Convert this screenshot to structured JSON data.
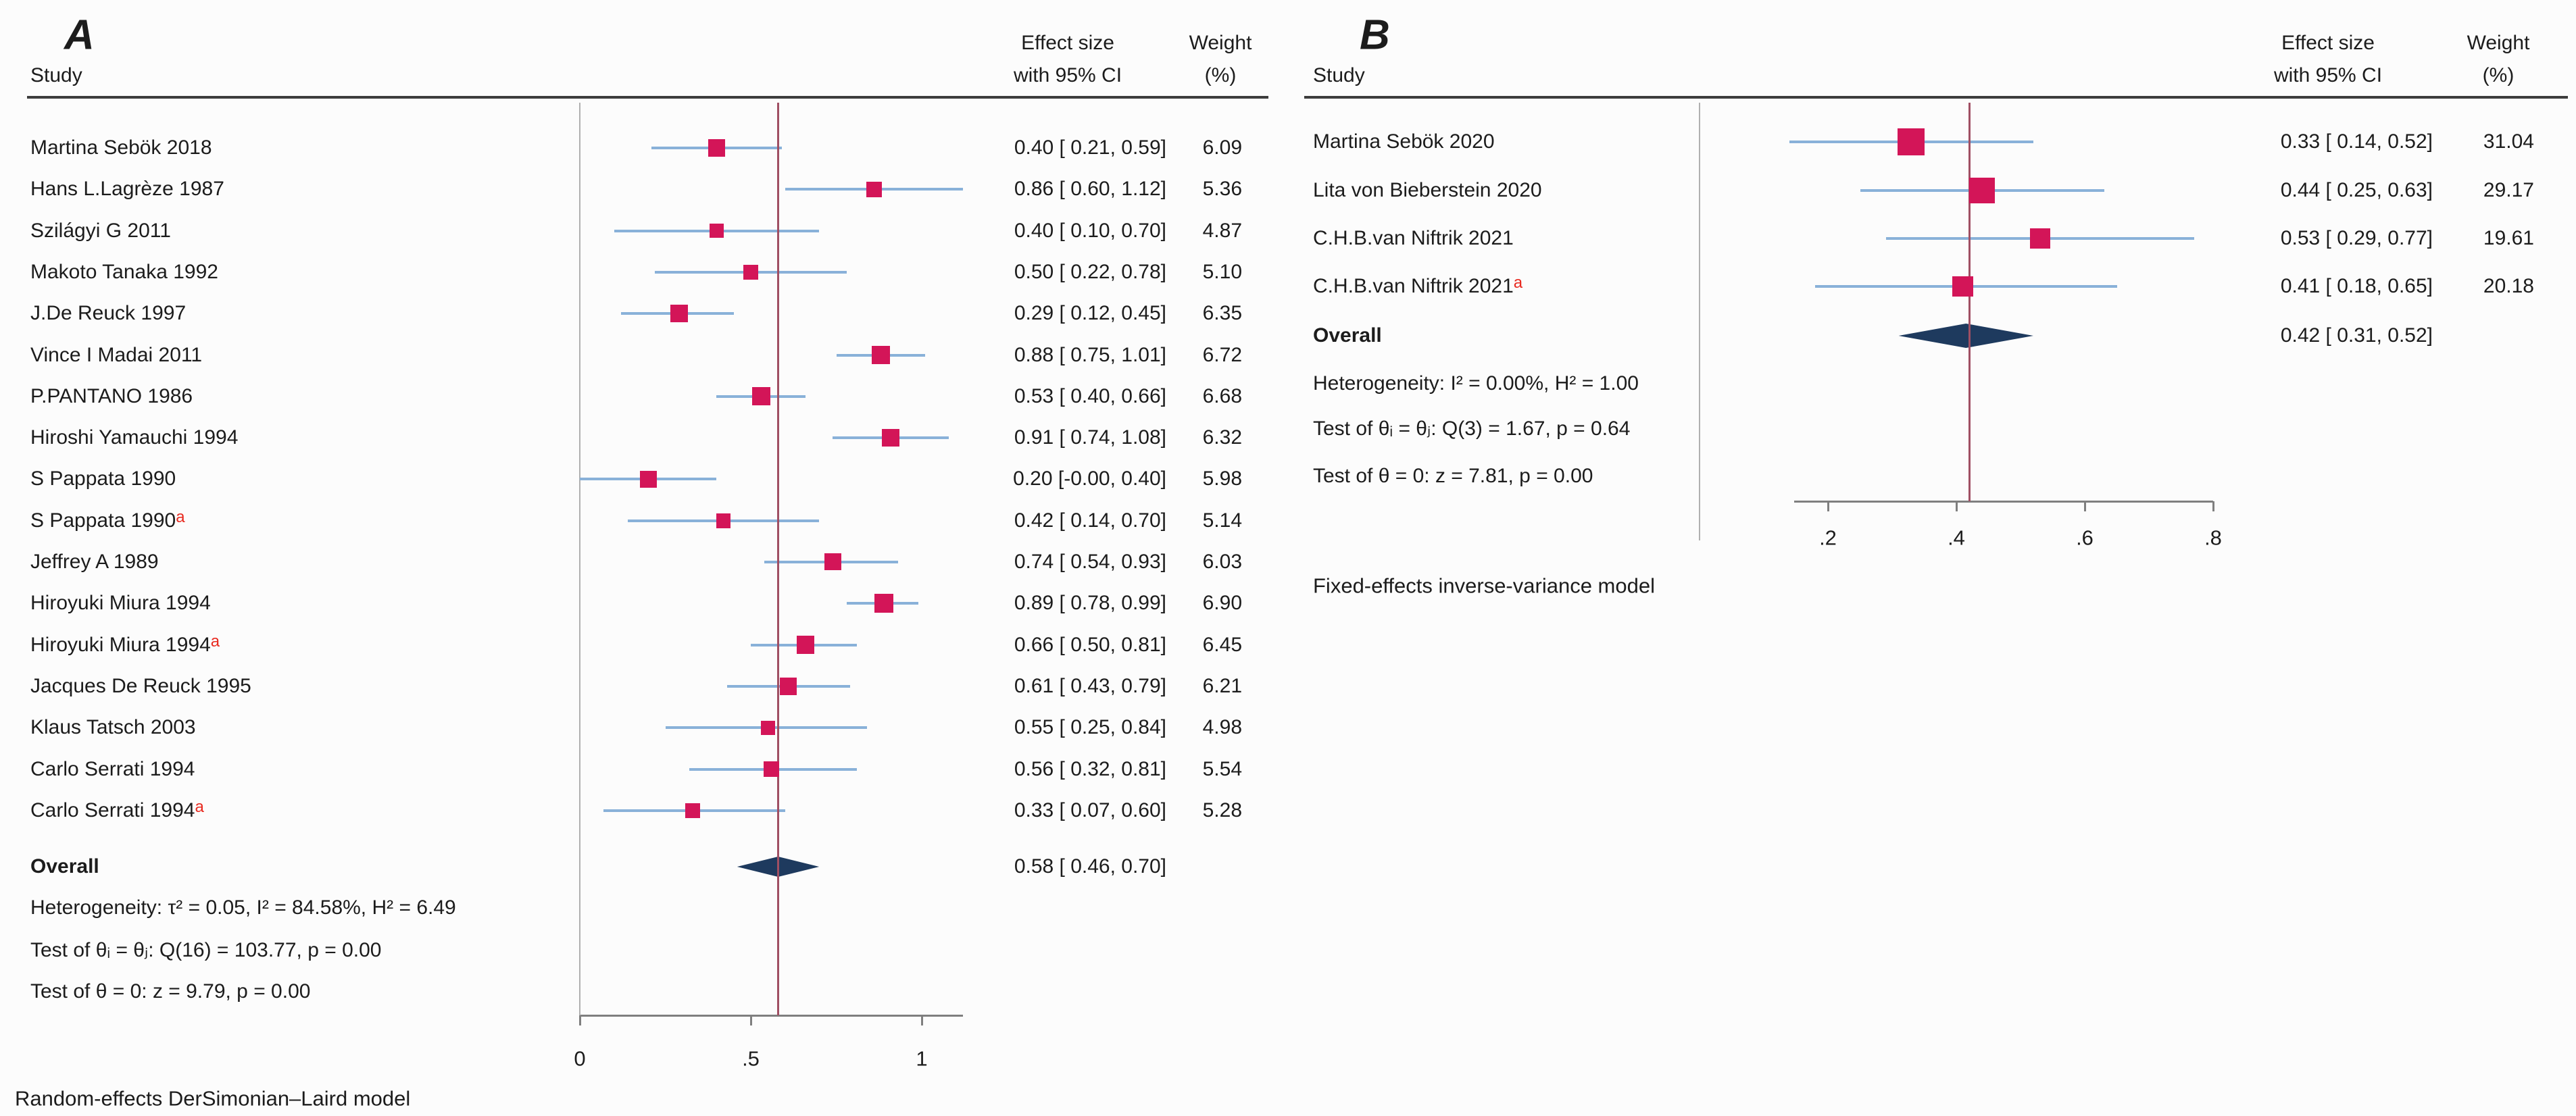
{
  "figure_type": "forest-plot-meta-analysis",
  "chart_data": [
    {
      "type": "forest",
      "panel_label": "A",
      "columns": {
        "study": "Study",
        "effect_line1": "Effect size",
        "effect_line2": "with 95% CI",
        "weight_line1": "Weight",
        "weight_line2": "(%)"
      },
      "studies": [
        {
          "name": "Martina Sebök 2018",
          "flag": "",
          "effect": 0.4,
          "ci": [
            0.21,
            0.59
          ],
          "effect_label": "0.40 [ 0.21, 0.59]",
          "weight": 6.09,
          "weight_label": "6.09"
        },
        {
          "name": "Hans L.Lagrèze 1987",
          "flag": "",
          "effect": 0.86,
          "ci": [
            0.6,
            1.12
          ],
          "effect_label": "0.86 [ 0.60, 1.12]",
          "weight": 5.36,
          "weight_label": "5.36"
        },
        {
          "name": "Szilágyi G 2011",
          "flag": "",
          "effect": 0.4,
          "ci": [
            0.1,
            0.7
          ],
          "effect_label": "0.40 [ 0.10, 0.70]",
          "weight": 4.87,
          "weight_label": "4.87"
        },
        {
          "name": "Makoto Tanaka 1992",
          "flag": "",
          "effect": 0.5,
          "ci": [
            0.22,
            0.78
          ],
          "effect_label": "0.50 [ 0.22, 0.78]",
          "weight": 5.1,
          "weight_label": "5.10"
        },
        {
          "name": "J.De Reuck 1997",
          "flag": "",
          "effect": 0.29,
          "ci": [
            0.12,
            0.45
          ],
          "effect_label": "0.29 [ 0.12, 0.45]",
          "weight": 6.35,
          "weight_label": "6.35"
        },
        {
          "name": "Vince I Madai 2011",
          "flag": "",
          "effect": 0.88,
          "ci": [
            0.75,
            1.01
          ],
          "effect_label": "0.88 [ 0.75, 1.01]",
          "weight": 6.72,
          "weight_label": "6.72"
        },
        {
          "name": "P.PANTANO 1986",
          "flag": "",
          "effect": 0.53,
          "ci": [
            0.4,
            0.66
          ],
          "effect_label": "0.53 [ 0.40, 0.66]",
          "weight": 6.68,
          "weight_label": "6.68"
        },
        {
          "name": "Hiroshi Yamauchi 1994",
          "flag": "",
          "effect": 0.91,
          "ci": [
            0.74,
            1.08
          ],
          "effect_label": "0.91 [ 0.74, 1.08]",
          "weight": 6.32,
          "weight_label": "6.32"
        },
        {
          "name": "S Pappata 1990",
          "flag": "",
          "effect": 0.2,
          "ci": [
            0.0,
            0.4
          ],
          "effect_label": "0.20 [-0.00, 0.40]",
          "weight": 5.98,
          "weight_label": "5.98"
        },
        {
          "name": "S Pappata 1990",
          "flag": "a",
          "effect": 0.42,
          "ci": [
            0.14,
            0.7
          ],
          "effect_label": "0.42 [ 0.14, 0.70]",
          "weight": 5.14,
          "weight_label": "5.14"
        },
        {
          "name": "Jeffrey A 1989",
          "flag": "",
          "effect": 0.74,
          "ci": [
            0.54,
            0.93
          ],
          "effect_label": "0.74 [ 0.54, 0.93]",
          "weight": 6.03,
          "weight_label": "6.03"
        },
        {
          "name": "Hiroyuki Miura 1994",
          "flag": "",
          "effect": 0.89,
          "ci": [
            0.78,
            0.99
          ],
          "effect_label": "0.89 [ 0.78, 0.99]",
          "weight": 6.9,
          "weight_label": "6.90"
        },
        {
          "name": "Hiroyuki Miura 1994",
          "flag": "a",
          "effect": 0.66,
          "ci": [
            0.5,
            0.81
          ],
          "effect_label": "0.66 [ 0.50, 0.81]",
          "weight": 6.45,
          "weight_label": "6.45"
        },
        {
          "name": "Jacques De Reuck 1995",
          "flag": "",
          "effect": 0.61,
          "ci": [
            0.43,
            0.79
          ],
          "effect_label": "0.61 [ 0.43, 0.79]",
          "weight": 6.21,
          "weight_label": "6.21"
        },
        {
          "name": "Klaus Tatsch 2003",
          "flag": "",
          "effect": 0.55,
          "ci": [
            0.25,
            0.84
          ],
          "effect_label": "0.55 [ 0.25, 0.84]",
          "weight": 4.98,
          "weight_label": "4.98"
        },
        {
          "name": "Carlo Serrati 1994",
          "flag": "",
          "effect": 0.56,
          "ci": [
            0.32,
            0.81
          ],
          "effect_label": "0.56 [ 0.32, 0.81]",
          "weight": 5.54,
          "weight_label": "5.54"
        },
        {
          "name": "Carlo Serrati 1994",
          "flag": "a",
          "effect": 0.33,
          "ci": [
            0.07,
            0.6
          ],
          "effect_label": "0.33 [ 0.07, 0.60]",
          "weight": 5.28,
          "weight_label": "5.28"
        }
      ],
      "overall": {
        "label": "Overall",
        "effect": 0.58,
        "ci": [
          0.46,
          0.7
        ],
        "effect_label": "0.58 [ 0.46, 0.70]"
      },
      "stats": [
        "Heterogeneity: τ² = 0.05, I² = 84.58%, H² = 6.49",
        "Test of θᵢ = θⱼ: Q(16) = 103.77, p = 0.00",
        "Test of θ = 0: z = 9.79, p = 0.00"
      ],
      "axis": {
        "tick_labels": [
          "0",
          ".5",
          "1"
        ],
        "tick_values": [
          0,
          0.5,
          1
        ],
        "ref_line": 0.58,
        "xlim": [
          0,
          1.12
        ]
      },
      "model_note": "Random-effects DerSimonian–Laird model"
    },
    {
      "type": "forest",
      "panel_label": "B",
      "columns": {
        "study": "Study",
        "effect_line1": "Effect size",
        "effect_line2": "with 95% CI",
        "weight_line1": "Weight",
        "weight_line2": "(%)"
      },
      "studies": [
        {
          "name": "Martina Sebök 2020",
          "flag": "",
          "effect": 0.33,
          "ci": [
            0.14,
            0.52
          ],
          "effect_label": "0.33 [ 0.14, 0.52]",
          "weight": 31.04,
          "weight_label": "31.04"
        },
        {
          "name": "Lita von Bieberstein 2020",
          "flag": "",
          "effect": 0.44,
          "ci": [
            0.25,
            0.63
          ],
          "effect_label": "0.44 [ 0.25, 0.63]",
          "weight": 29.17,
          "weight_label": "29.17"
        },
        {
          "name": "C.H.B.van Niftrik 2021",
          "flag": "",
          "effect": 0.53,
          "ci": [
            0.29,
            0.77
          ],
          "effect_label": "0.53 [ 0.29, 0.77]",
          "weight": 19.61,
          "weight_label": "19.61"
        },
        {
          "name": "C.H.B.van Niftrik 2021",
          "flag": "a",
          "effect": 0.41,
          "ci": [
            0.18,
            0.65
          ],
          "effect_label": "0.41 [ 0.18, 0.65]",
          "weight": 20.18,
          "weight_label": "20.18"
        }
      ],
      "overall": {
        "label": "Overall",
        "effect": 0.42,
        "ci": [
          0.31,
          0.52
        ],
        "effect_label": "0.42 [ 0.31, 0.52]"
      },
      "stats": [
        "Heterogeneity: I² = 0.00%, H² = 1.00",
        "Test of θᵢ = θⱼ: Q(3) = 1.67, p = 0.64",
        "Test of θ = 0: z = 7.81, p = 0.00"
      ],
      "axis": {
        "tick_labels": [
          ".2",
          ".4",
          ".6",
          ".8"
        ],
        "tick_values": [
          0.2,
          0.4,
          0.6,
          0.8
        ],
        "ref_line": 0.42,
        "xlim": [
          0,
          0.8
        ]
      },
      "model_note": "Fixed-effects inverse-variance model"
    }
  ],
  "colors": {
    "marker": "#d31558",
    "ci_line": "#89b1d9",
    "diamond": "#1e3a5e",
    "ref_line": "#a04f63",
    "axis": "#7f7f7f",
    "plot_border": "#b0b0b0",
    "header_rule": "#3d3d3d",
    "flag": "#e8291f",
    "text": "#1c1c1c",
    "background": "#fcfcfc"
  }
}
